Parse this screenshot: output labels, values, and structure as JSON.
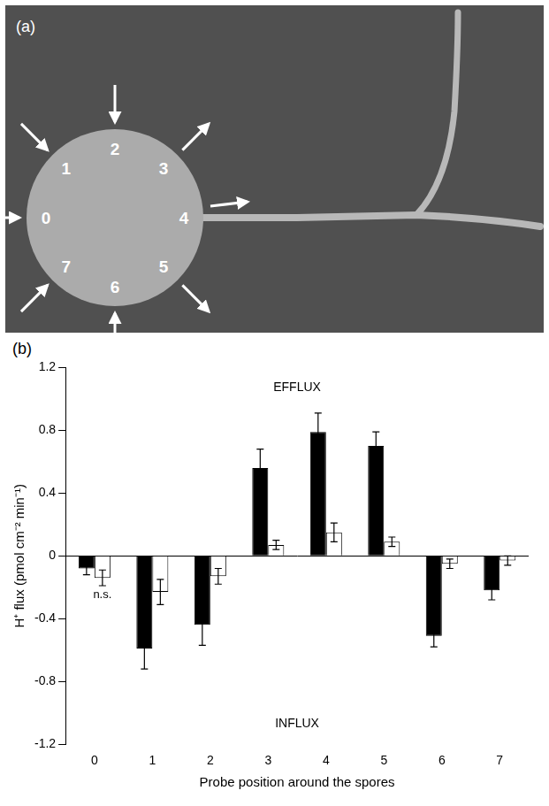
{
  "panel_a": {
    "letter": "(a)",
    "positions": [
      {
        "label": "0",
        "arrow": "in"
      },
      {
        "label": "1",
        "arrow": "in"
      },
      {
        "label": "2",
        "arrow": "in"
      },
      {
        "label": "3",
        "arrow": "out"
      },
      {
        "label": "4",
        "arrow": "out"
      },
      {
        "label": "5",
        "arrow": "out"
      },
      {
        "label": "6",
        "arrow": "in"
      },
      {
        "label": "7",
        "arrow": "in"
      }
    ]
  },
  "chart_data": {
    "type": "bar",
    "letter": "(b)",
    "x_label": "Probe position around the spores",
    "y_label": "H⁺ flux (pmol cm⁻² min⁻¹)",
    "categories": [
      "0",
      "1",
      "2",
      "3",
      "4",
      "5",
      "6",
      "7"
    ],
    "series": [
      {
        "color": "#000000",
        "values": [
          -0.08,
          -0.59,
          -0.44,
          0.56,
          0.79,
          0.7,
          -0.51,
          -0.22
        ],
        "errors": [
          0.04,
          0.13,
          0.13,
          0.12,
          0.12,
          0.09,
          0.07,
          0.06
        ]
      },
      {
        "color": "#ffffff",
        "values": [
          -0.14,
          -0.23,
          -0.13,
          0.07,
          0.15,
          0.09,
          -0.05,
          -0.03
        ],
        "errors": [
          0.05,
          0.08,
          0.05,
          0.03,
          0.06,
          0.03,
          0.03,
          0.03
        ],
        "notes": [
          "n.s.",
          null,
          null,
          null,
          null,
          null,
          null,
          null
        ]
      }
    ],
    "annotations": {
      "top": "EFFLUX",
      "bottom": "INFLUX"
    },
    "ylim": [
      -1.2,
      1.2
    ],
    "yticks": [
      -1.2,
      -0.8,
      -0.4,
      0,
      0.4,
      0.8,
      1.2
    ],
    "grid": false
  }
}
